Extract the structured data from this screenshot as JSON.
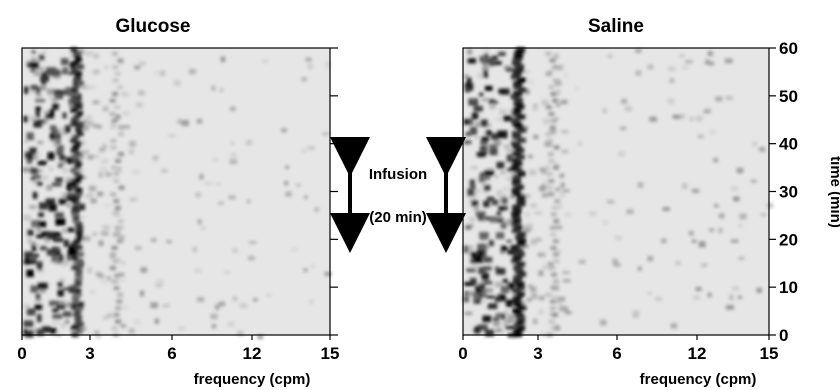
{
  "chart_data": [
    {
      "type": "heatmap",
      "title": "Glucose",
      "xlabel": "frequency (cpm)",
      "ylabel": "",
      "xlim": [
        0,
        15
      ],
      "ylim": [
        0,
        60
      ],
      "xticks": [
        "0",
        "3",
        "6",
        "12",
        "15"
      ],
      "yticks": [],
      "dominant_band_cpm": 3,
      "description_free": true
    },
    {
      "type": "heatmap",
      "title": "Saline",
      "xlabel": "frequency (cpm)",
      "ylabel": "time (min)",
      "xlim": [
        0,
        15
      ],
      "ylim": [
        0,
        60
      ],
      "xticks": [
        "0",
        "3",
        "6",
        "12",
        "15"
      ],
      "yticks": [
        "0",
        "10",
        "20",
        "30",
        "40",
        "50",
        "60"
      ],
      "dominant_band_cpm": 3
    }
  ],
  "annotation": {
    "label": "Infusion",
    "duration": "(20 min)",
    "start_min": 20,
    "end_min": 40
  },
  "colors": {
    "background": "#e6e6e6",
    "ink": "#000000"
  }
}
